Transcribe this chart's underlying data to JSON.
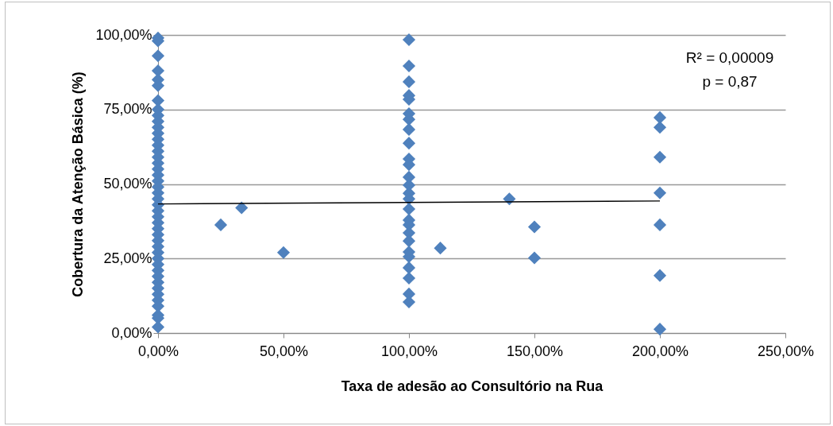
{
  "chart_data": {
    "type": "scatter",
    "xlabel": "Taxa de adesão ao Consultório na Rua",
    "ylabel": "Cobertura da Atenção Básica (%)",
    "annotations": [
      "R² = 0,00009",
      "p = 0,87"
    ],
    "xlim": [
      0,
      250
    ],
    "ylim": [
      0,
      100
    ],
    "xticks": [
      {
        "value": 0,
        "label": "0,00%"
      },
      {
        "value": 50,
        "label": "50,00%"
      },
      {
        "value": 100,
        "label": "100,00%"
      },
      {
        "value": 150,
        "label": "150,00%"
      },
      {
        "value": 200,
        "label": "200,00%"
      },
      {
        "value": 250,
        "label": "250,00%"
      }
    ],
    "yticks": [
      {
        "value": 0,
        "label": "0,00%"
      },
      {
        "value": 25,
        "label": "25,00%"
      },
      {
        "value": 50,
        "label": "50,00%"
      },
      {
        "value": 75,
        "label": "75,00%"
      },
      {
        "value": 100,
        "label": "100,00%"
      }
    ],
    "grid": "y",
    "series": [
      {
        "color": "#4f81bd",
        "marker": "diamond",
        "x": [
          0,
          0,
          0,
          0,
          0,
          0,
          0,
          0,
          0,
          0,
          0,
          0,
          0,
          0,
          0,
          0,
          0,
          0,
          0,
          0,
          0,
          0,
          0,
          0,
          0,
          0,
          0,
          0,
          0,
          0,
          0,
          0,
          0,
          0,
          0,
          0,
          0,
          0,
          0,
          0,
          0,
          0,
          0,
          0,
          100,
          100,
          100,
          100,
          100,
          100,
          100,
          100,
          100,
          100,
          100,
          100,
          100,
          100,
          100,
          100,
          100,
          100,
          100,
          100,
          100,
          100,
          100,
          100,
          100,
          100,
          25,
          33.3,
          50,
          112.5,
          140,
          150,
          150,
          200,
          200,
          200,
          200,
          200,
          200,
          200
        ],
        "values": [
          99,
          98,
          93,
          88,
          85,
          83,
          78,
          75,
          73,
          71,
          69,
          67,
          65,
          63,
          61,
          59,
          57,
          55,
          53,
          51,
          49,
          47,
          45,
          43,
          41,
          39,
          37,
          35,
          33,
          31,
          29,
          27,
          25,
          23,
          21,
          19,
          17,
          15,
          13,
          11,
          9,
          6,
          5,
          2,
          98.4,
          89.6,
          84.3,
          79.7,
          78.4,
          73.6,
          71.7,
          68.3,
          63.7,
          58.4,
          56.5,
          52.3,
          49.6,
          46.9,
          45,
          41.6,
          37.9,
          36.3,
          33.6,
          30.9,
          27.2,
          25.6,
          21.9,
          18.4,
          13.1,
          10.4,
          36.3,
          42,
          27,
          28.5,
          45,
          35.6,
          25.2,
          72.3,
          69,
          59,
          47,
          36.3,
          19.3,
          1.3
        ]
      },
      {
        "type": "line",
        "marker": "none",
        "color": "#000000",
        "x": [
          0,
          200
        ],
        "values": [
          43.3,
          44.3
        ]
      }
    ]
  }
}
